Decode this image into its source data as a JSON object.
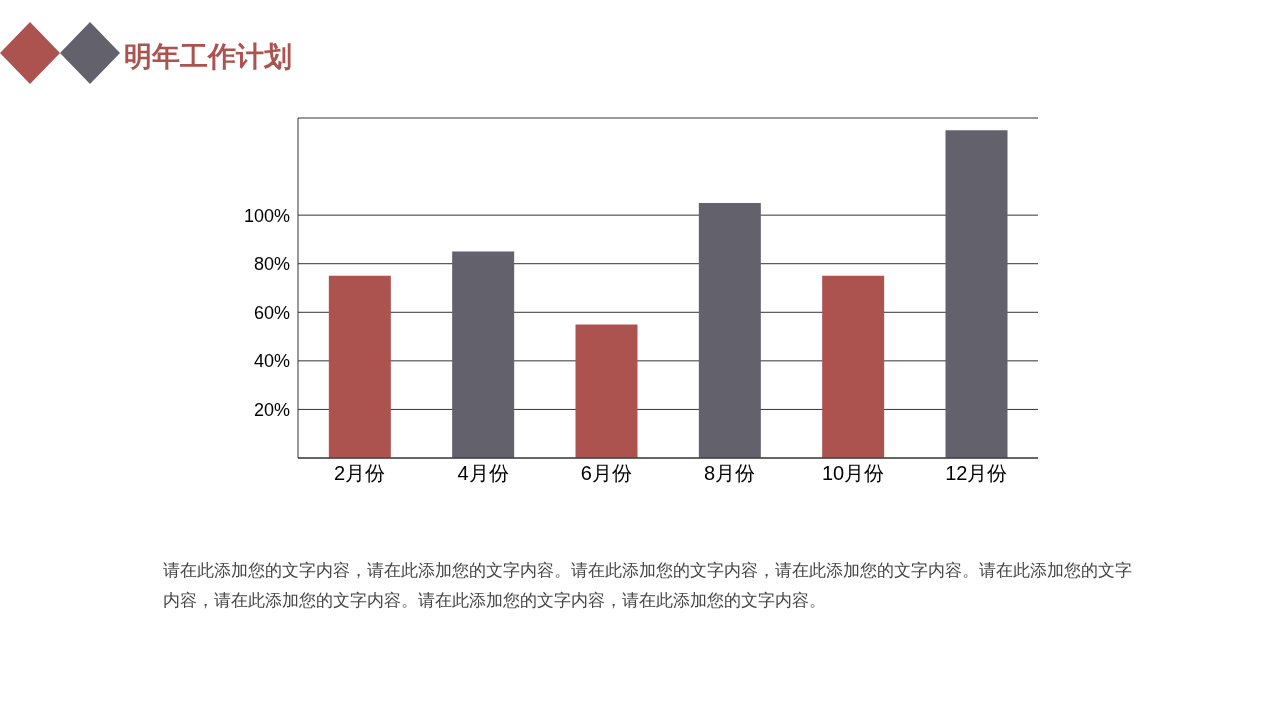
{
  "chart_data": {
    "type": "bar",
    "title": "明年工作计划",
    "categories": [
      "2月份",
      "4月份",
      "6月份",
      "8月份",
      "10月份",
      "12月份"
    ],
    "values": [
      75,
      85,
      55,
      105,
      75,
      135
    ],
    "colors": [
      "#ac5350",
      "#63616b",
      "#ac5350",
      "#63616b",
      "#ac5350",
      "#63616b"
    ],
    "ylim": [
      0,
      140
    ],
    "yticks": [
      {
        "value": 20,
        "label": "20%"
      },
      {
        "value": 40,
        "label": "40%"
      },
      {
        "value": 60,
        "label": "60%"
      },
      {
        "value": 80,
        "label": "80%"
      },
      {
        "value": 100,
        "label": "100%"
      }
    ],
    "grid": "y",
    "annotations": [
      "请在此添加您的文字内容，请在此添加您的文字内容。请在此添加您的文字内容，请在此添加您的文字内容。请在此添加您的文字内容，请在此添加您的文字内容。请在此添加您的文字内容，请在此添加您的文字内容。"
    ]
  }
}
